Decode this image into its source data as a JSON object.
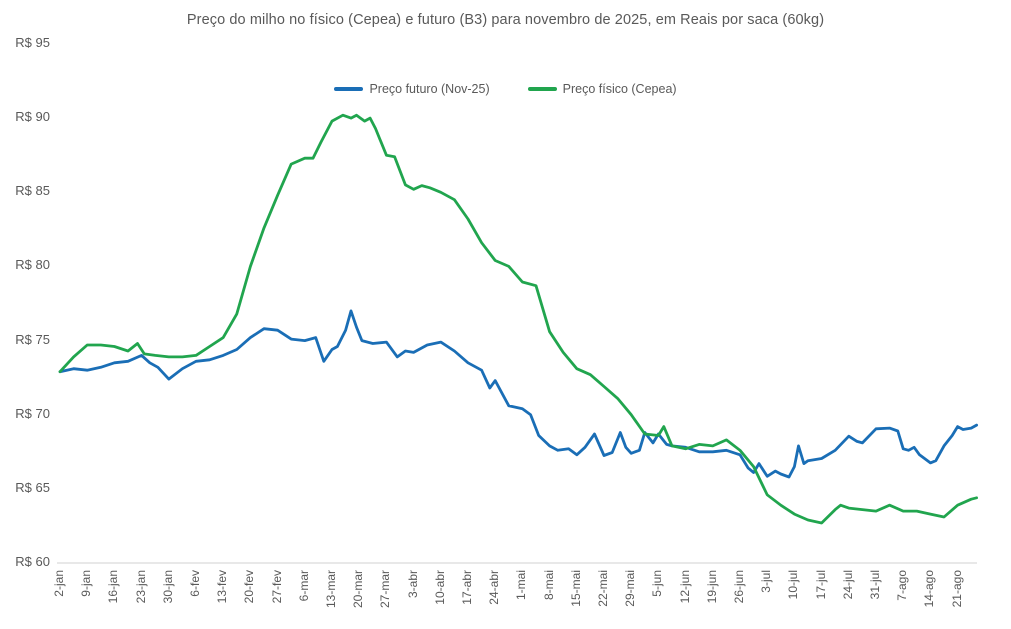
{
  "title": "Preço do milho no físico (Cepea) e futuro (B3) para novembro de 2025, em Reais por saca (60kg)",
  "legend": {
    "position": "top-center",
    "items": [
      {
        "label": "Preço futuro (Nov-25)",
        "color": "#1A6EB6"
      },
      {
        "label": "Preço físico (Cepea)",
        "color": "#21A54E"
      }
    ]
  },
  "colors": {
    "series_futuro": "#1A6EB6",
    "series_fisico": "#21A54E",
    "axis_line": "#D9D9D9",
    "text": "#595959",
    "background": "#FFFFFF"
  },
  "chart_data": {
    "type": "line",
    "title": "Preço do milho no físico (Cepea) e futuro (B3) para novembro de 2025, em Reais por saca (60kg)",
    "xlabel": "",
    "ylabel": "",
    "grid": "none",
    "legend_position": "top-center",
    "y_axis": {
      "min": 60,
      "max": 95,
      "step": 5,
      "prefix": "R$ ",
      "tick_labels": [
        "R$ 60",
        "R$ 65",
        "R$ 70",
        "R$ 75",
        "R$ 80",
        "R$ 85",
        "R$ 90",
        "R$ 95"
      ]
    },
    "x_axis": {
      "unit": "weekly date, daily data",
      "tick_labels": [
        "2-jan",
        "9-jan",
        "16-jan",
        "23-jan",
        "30-jan",
        "6-fev",
        "13-fev",
        "20-fev",
        "27-fev",
        "6-mar",
        "13-mar",
        "20-mar",
        "27-mar",
        "3-abr",
        "10-abr",
        "17-abr",
        "24-abr",
        "1-mai",
        "8-mai",
        "15-mai",
        "22-mai",
        "29-mai",
        "5-jun",
        "12-jun",
        "19-jun",
        "26-jun",
        "3-jul",
        "10-jul",
        "17-jul",
        "24-jul",
        "31-jul",
        "7-ago",
        "14-ago",
        "21-ago"
      ]
    },
    "series": [
      {
        "name": "Preço futuro (Nov-25)",
        "color": "#1A6EB6",
        "points": [
          [
            0,
            72.9
          ],
          [
            0.5,
            73.1
          ],
          [
            1,
            73.0
          ],
          [
            1.5,
            73.2
          ],
          [
            2,
            73.5
          ],
          [
            2.5,
            73.6
          ],
          [
            3,
            74.0
          ],
          [
            3.3,
            73.5
          ],
          [
            3.6,
            73.2
          ],
          [
            4,
            72.4
          ],
          [
            4.5,
            73.1
          ],
          [
            5,
            73.6
          ],
          [
            5.5,
            73.7
          ],
          [
            6,
            74.0
          ],
          [
            6.5,
            74.4
          ],
          [
            7,
            75.2
          ],
          [
            7.5,
            75.8
          ],
          [
            8,
            75.7
          ],
          [
            8.5,
            75.1
          ],
          [
            9,
            75.0
          ],
          [
            9.4,
            75.2
          ],
          [
            9.7,
            73.6
          ],
          [
            10,
            74.4
          ],
          [
            10.2,
            74.6
          ],
          [
            10.5,
            75.7
          ],
          [
            10.7,
            77.0
          ],
          [
            10.9,
            75.9
          ],
          [
            11.1,
            75.0
          ],
          [
            11.5,
            74.8
          ],
          [
            12,
            74.9
          ],
          [
            12.4,
            73.9
          ],
          [
            12.7,
            74.3
          ],
          [
            13,
            74.2
          ],
          [
            13.5,
            74.7
          ],
          [
            14,
            74.9
          ],
          [
            14.5,
            74.3
          ],
          [
            15,
            73.5
          ],
          [
            15.5,
            73.0
          ],
          [
            15.8,
            71.8
          ],
          [
            16,
            72.3
          ],
          [
            16.5,
            70.6
          ],
          [
            17,
            70.4
          ],
          [
            17.3,
            70.0
          ],
          [
            17.6,
            68.6
          ],
          [
            18,
            67.9
          ],
          [
            18.3,
            67.6
          ],
          [
            18.7,
            67.7
          ],
          [
            19,
            67.3
          ],
          [
            19.3,
            67.8
          ],
          [
            19.65,
            68.7
          ],
          [
            20,
            67.25
          ],
          [
            20.3,
            67.45
          ],
          [
            20.6,
            68.8
          ],
          [
            20.8,
            67.8
          ],
          [
            21,
            67.4
          ],
          [
            21.3,
            67.6
          ],
          [
            21.5,
            68.8
          ],
          [
            21.8,
            68.1
          ],
          [
            22,
            68.7
          ],
          [
            22.3,
            68.0
          ],
          [
            22.5,
            67.9
          ],
          [
            23,
            67.8
          ],
          [
            23.5,
            67.5
          ],
          [
            24,
            67.5
          ],
          [
            24.5,
            67.6
          ],
          [
            25,
            67.3
          ],
          [
            25.3,
            66.4
          ],
          [
            25.5,
            66.1
          ],
          [
            25.7,
            66.7
          ],
          [
            26,
            65.85
          ],
          [
            26.3,
            66.2
          ],
          [
            26.5,
            66.0
          ],
          [
            26.8,
            65.8
          ],
          [
            27,
            66.5
          ],
          [
            27.15,
            67.9
          ],
          [
            27.35,
            66.7
          ],
          [
            27.5,
            66.9
          ],
          [
            28,
            67.05
          ],
          [
            28.5,
            67.6
          ],
          [
            29,
            68.55
          ],
          [
            29.3,
            68.2
          ],
          [
            29.5,
            68.1
          ],
          [
            30,
            69.05
          ],
          [
            30.5,
            69.1
          ],
          [
            30.8,
            68.9
          ],
          [
            31,
            67.7
          ],
          [
            31.2,
            67.6
          ],
          [
            31.4,
            67.8
          ],
          [
            31.6,
            67.3
          ],
          [
            32,
            66.75
          ],
          [
            32.2,
            66.9
          ],
          [
            32.5,
            67.9
          ],
          [
            32.8,
            68.6
          ],
          [
            33,
            69.2
          ],
          [
            33.2,
            69.0
          ],
          [
            33.5,
            69.1
          ],
          [
            33.7,
            69.3
          ]
        ]
      },
      {
        "name": "Preço físico (Cepea)",
        "color": "#21A54E",
        "points": [
          [
            0,
            72.9
          ],
          [
            0.5,
            73.9
          ],
          [
            1,
            74.7
          ],
          [
            1.5,
            74.7
          ],
          [
            2,
            74.6
          ],
          [
            2.5,
            74.3
          ],
          [
            2.85,
            74.8
          ],
          [
            3.1,
            74.1
          ],
          [
            3.5,
            74.0
          ],
          [
            4,
            73.9
          ],
          [
            4.5,
            73.9
          ],
          [
            5,
            74.0
          ],
          [
            5.5,
            74.6
          ],
          [
            6,
            75.2
          ],
          [
            6.5,
            76.8
          ],
          [
            7,
            80.0
          ],
          [
            7.5,
            82.6
          ],
          [
            8,
            84.8
          ],
          [
            8.5,
            86.9
          ],
          [
            9,
            87.3
          ],
          [
            9.3,
            87.3
          ],
          [
            9.6,
            88.4
          ],
          [
            10,
            89.8
          ],
          [
            10.4,
            90.2
          ],
          [
            10.7,
            90.0
          ],
          [
            10.9,
            90.2
          ],
          [
            11.2,
            89.8
          ],
          [
            11.4,
            90.0
          ],
          [
            11.6,
            89.3
          ],
          [
            12,
            87.5
          ],
          [
            12.3,
            87.4
          ],
          [
            12.7,
            85.5
          ],
          [
            13,
            85.2
          ],
          [
            13.3,
            85.45
          ],
          [
            13.6,
            85.3
          ],
          [
            14,
            85.0
          ],
          [
            14.5,
            84.5
          ],
          [
            15,
            83.2
          ],
          [
            15.5,
            81.6
          ],
          [
            16,
            80.4
          ],
          [
            16.5,
            80.0
          ],
          [
            17,
            78.95
          ],
          [
            17.5,
            78.7
          ],
          [
            18,
            75.6
          ],
          [
            18.5,
            74.2
          ],
          [
            19,
            73.1
          ],
          [
            19.5,
            72.7
          ],
          [
            20,
            71.9
          ],
          [
            20.5,
            71.1
          ],
          [
            21,
            70.0
          ],
          [
            21.5,
            68.7
          ],
          [
            22,
            68.6
          ],
          [
            22.2,
            69.2
          ],
          [
            22.5,
            67.9
          ],
          [
            23,
            67.7
          ],
          [
            23.5,
            68.0
          ],
          [
            24,
            67.9
          ],
          [
            24.5,
            68.3
          ],
          [
            25,
            67.6
          ],
          [
            25.5,
            66.5
          ],
          [
            26,
            64.6
          ],
          [
            26.5,
            63.9
          ],
          [
            27,
            63.3
          ],
          [
            27.5,
            62.9
          ],
          [
            28,
            62.7
          ],
          [
            28.5,
            63.6
          ],
          [
            28.7,
            63.9
          ],
          [
            29,
            63.7
          ],
          [
            29.5,
            63.6
          ],
          [
            30,
            63.5
          ],
          [
            30.5,
            63.9
          ],
          [
            31,
            63.5
          ],
          [
            31.5,
            63.5
          ],
          [
            32,
            63.3
          ],
          [
            32.5,
            63.1
          ],
          [
            33,
            63.9
          ],
          [
            33.5,
            64.3
          ],
          [
            33.7,
            64.4
          ]
        ]
      }
    ]
  }
}
